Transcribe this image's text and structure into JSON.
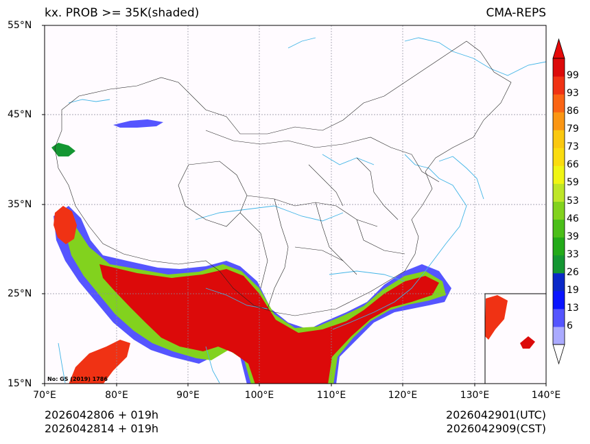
{
  "title_left": "kx. PROB >= 35K(shaded)",
  "title_right": "CMA-REPS",
  "lat_ticks": [
    "55°N",
    "45°N",
    "35°N",
    "25°N",
    "15°N"
  ],
  "lon_ticks": [
    "70°E",
    "80°E",
    "90°E",
    "100°E",
    "110°E",
    "120°E",
    "130°E",
    "140°E"
  ],
  "footer": {
    "left_line1": "2026042806  +  019h",
    "left_line2": "2026042814  +  019h",
    "right_line1": "2026042901(UTC)",
    "right_line2": "2026042909(CST)"
  },
  "map_credit": "No: GS (2019) 1786",
  "colorbar": {
    "levels": [
      "6",
      "13",
      "19",
      "26",
      "33",
      "39",
      "46",
      "53",
      "59",
      "66",
      "73",
      "79",
      "86",
      "93",
      "99"
    ],
    "colors": [
      "#aaaaff",
      "#5555ff",
      "#0a14ff",
      "#0a28c8",
      "#149632",
      "#23aa19",
      "#4bbe19",
      "#82d21e",
      "#bee628",
      "#f0f514",
      "#fadc0f",
      "#fac80f",
      "#fa9614",
      "#fa6414",
      "#f03214",
      "#dc0a0a"
    ],
    "under_color": "#ffffff",
    "over_color": "#e60a0a"
  },
  "colors": {
    "coast": "#3fb4e6",
    "border": "#222222",
    "grid": "#8a8a9a",
    "background": "#fffbff"
  }
}
